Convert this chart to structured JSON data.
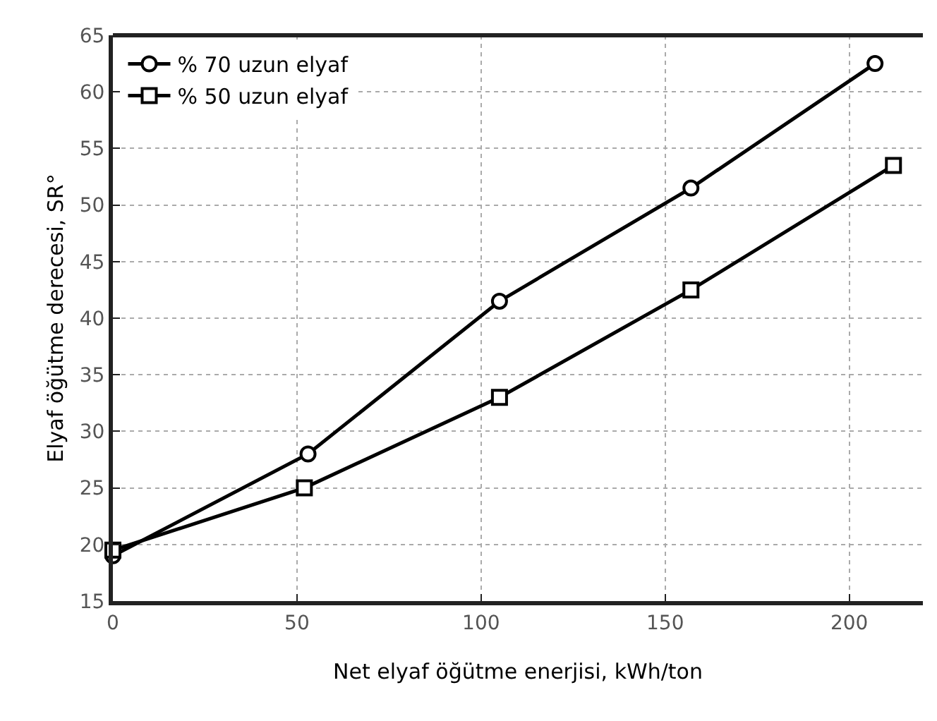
{
  "chart_data": {
    "type": "line",
    "xlabel": "Net elyaf öğütme enerjisi, kWh/ton",
    "ylabel": "Elyaf öğütme derecesi, SR°",
    "series": [
      {
        "name": "% 70 uzun elyaf",
        "color": "#000000",
        "marker": "circle",
        "x": [
          0,
          53,
          105,
          157,
          207
        ],
        "values": [
          19,
          28,
          41.5,
          51.5,
          62.5
        ]
      },
      {
        "name": "% 50 uzun elyaf",
        "color": "#000000",
        "marker": "square",
        "x": [
          0,
          52,
          105,
          157,
          212
        ],
        "values": [
          19.5,
          25,
          33,
          42.5,
          53.5
        ]
      }
    ],
    "xlim": [
      0,
      220
    ],
    "xticks": [
      0,
      50,
      100,
      150,
      200
    ],
    "ylim": [
      15,
      65
    ],
    "yticks": [
      15,
      20,
      25,
      30,
      35,
      40,
      45,
      50,
      55,
      60,
      65
    ],
    "grid": true,
    "legend": "top left",
    "line_style": "solid"
  }
}
